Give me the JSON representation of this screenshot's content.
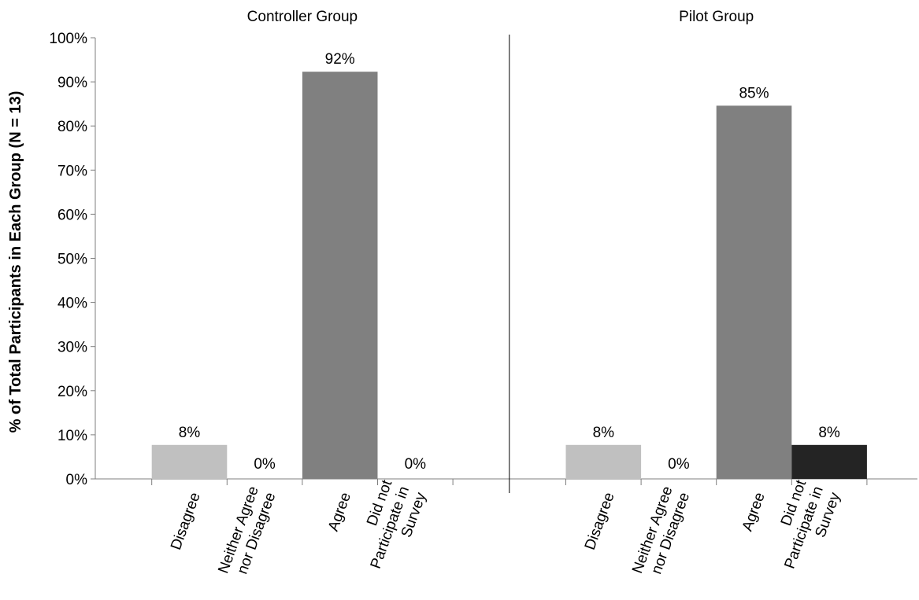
{
  "chart_data": {
    "type": "bar",
    "panel_titles": [
      "Controller Group",
      "Pilot Group"
    ],
    "categories": [
      "Disagree",
      "Neither Agree nor Disagree",
      "Agree",
      "Did not Participate in Survey"
    ],
    "category_label_lines": [
      [
        "Disagree"
      ],
      [
        "Neither Agree",
        "nor Disagree"
      ],
      [
        "Agree"
      ],
      [
        "Did not",
        "Participate in",
        "Survey"
      ]
    ],
    "series": [
      {
        "values": [
          7.7,
          0,
          92.3,
          0
        ],
        "labels": [
          "8%",
          "0%",
          "92%",
          "0%"
        ]
      },
      {
        "values": [
          7.7,
          0,
          84.6,
          7.7
        ],
        "labels": [
          "8%",
          "0%",
          "85%",
          "8%"
        ]
      }
    ],
    "bar_colors": [
      "#c0c0c0",
      "#c0c0c0",
      "#808080",
      "#242424"
    ],
    "ylabel": "% of Total Participants in Each Group (N = 13)",
    "ylim": [
      0,
      100
    ],
    "yticks": [
      "0%",
      "10%",
      "20%",
      "30%",
      "40%",
      "50%",
      "60%",
      "70%",
      "80%",
      "90%",
      "100%"
    ],
    "grid": false
  }
}
